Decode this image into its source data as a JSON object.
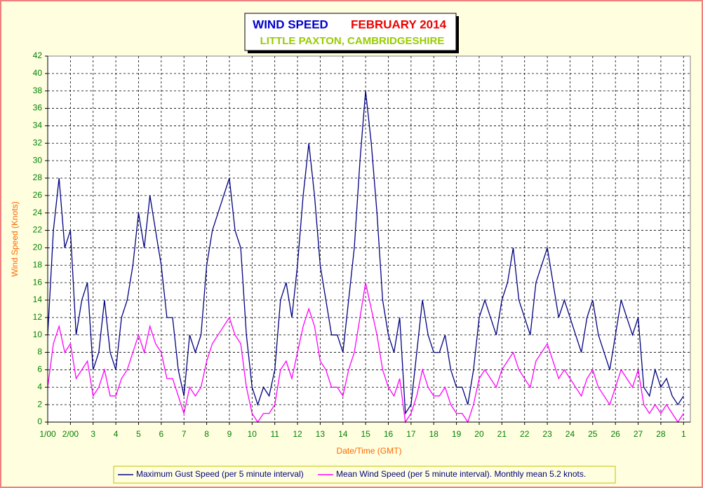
{
  "chart_data": {
    "type": "line",
    "title": "WIND SPEED",
    "title_color": "#0000cc",
    "period": "FEBRUARY 2014",
    "period_color": "#ee0000",
    "subtitle": "LITTLE PAXTON, CAMBRIDGESHIRE",
    "subtitle_color": "#99cc00",
    "x_label": "Date/Time (GMT)",
    "y_label": "Wind Speed (Knots)",
    "axis_label_color": "#ff6600",
    "grid": true,
    "xlim": [
      0,
      28.3
    ],
    "xticks": [
      {
        "value": 0,
        "label": "1/00"
      },
      {
        "value": 1,
        "label": "2/00"
      },
      {
        "value": 2,
        "label": "3"
      },
      {
        "value": 3,
        "label": "4"
      },
      {
        "value": 4,
        "label": "5"
      },
      {
        "value": 5,
        "label": "6"
      },
      {
        "value": 6,
        "label": "7"
      },
      {
        "value": 7,
        "label": "8"
      },
      {
        "value": 8,
        "label": "9"
      },
      {
        "value": 9,
        "label": "10"
      },
      {
        "value": 10,
        "label": "11"
      },
      {
        "value": 11,
        "label": "12"
      },
      {
        "value": 12,
        "label": "13"
      },
      {
        "value": 13,
        "label": "14"
      },
      {
        "value": 14,
        "label": "15"
      },
      {
        "value": 15,
        "label": "16"
      },
      {
        "value": 16,
        "label": "17"
      },
      {
        "value": 17,
        "label": "18"
      },
      {
        "value": 18,
        "label": "19"
      },
      {
        "value": 19,
        "label": "20"
      },
      {
        "value": 20,
        "label": "21"
      },
      {
        "value": 21,
        "label": "22"
      },
      {
        "value": 22,
        "label": "23"
      },
      {
        "value": 23,
        "label": "24"
      },
      {
        "value": 24,
        "label": "25"
      },
      {
        "value": 25,
        "label": "26"
      },
      {
        "value": 26,
        "label": "27"
      },
      {
        "value": 27,
        "label": "28"
      },
      {
        "value": 28,
        "label": "1"
      }
    ],
    "ylim": [
      0,
      42
    ],
    "yticks": [
      0,
      2,
      4,
      6,
      8,
      10,
      12,
      14,
      16,
      18,
      20,
      22,
      24,
      26,
      28,
      30,
      32,
      34,
      36,
      38,
      40,
      42
    ],
    "x": [
      0,
      0.25,
      0.5,
      0.75,
      1,
      1.25,
      1.5,
      1.75,
      2,
      2.25,
      2.5,
      2.75,
      3,
      3.25,
      3.5,
      3.75,
      4,
      4.25,
      4.5,
      4.75,
      5,
      5.25,
      5.5,
      5.75,
      6,
      6.25,
      6.5,
      6.75,
      7,
      7.25,
      7.5,
      7.75,
      8,
      8.25,
      8.5,
      8.75,
      9,
      9.25,
      9.5,
      9.75,
      10,
      10.25,
      10.5,
      10.75,
      11,
      11.25,
      11.5,
      11.75,
      12,
      12.25,
      12.5,
      12.75,
      13,
      13.25,
      13.5,
      13.75,
      14,
      14.25,
      14.5,
      14.75,
      15,
      15.25,
      15.5,
      15.75,
      16,
      16.25,
      16.5,
      16.75,
      17,
      17.25,
      17.5,
      17.75,
      18,
      18.25,
      18.5,
      18.75,
      19,
      19.25,
      19.5,
      19.75,
      20,
      20.25,
      20.5,
      20.75,
      21,
      21.25,
      21.5,
      21.75,
      22,
      22.25,
      22.5,
      22.75,
      23,
      23.25,
      23.5,
      23.75,
      24,
      24.25,
      24.5,
      24.75,
      25,
      25.25,
      25.5,
      25.75,
      26,
      26.25,
      26.5,
      26.75,
      27,
      27.25,
      27.5,
      27.75,
      28
    ],
    "series": [
      {
        "name": "Maximum Gust Speed (per 5 minute interval)",
        "color": "#000080",
        "values": [
          10,
          22,
          28,
          20,
          22,
          10,
          14,
          16,
          6,
          8,
          14,
          8,
          6,
          12,
          14,
          18,
          24,
          20,
          26,
          22,
          18,
          12,
          12,
          6,
          3,
          10,
          8,
          10,
          18,
          22,
          24,
          26,
          28,
          22,
          20,
          10,
          4,
          2,
          4,
          3,
          6,
          14,
          16,
          12,
          18,
          26,
          32,
          26,
          18,
          14,
          10,
          10,
          8,
          14,
          20,
          30,
          38,
          32,
          24,
          14,
          10,
          8,
          12,
          1,
          2,
          8,
          14,
          10,
          8,
          8,
          10,
          6,
          4,
          4,
          2,
          6,
          12,
          14,
          12,
          10,
          14,
          16,
          20,
          14,
          12,
          10,
          16,
          18,
          20,
          16,
          12,
          14,
          12,
          10,
          8,
          12,
          14,
          10,
          8,
          6,
          10,
          14,
          12,
          10,
          12,
          4,
          3,
          6,
          4,
          5,
          3,
          2,
          3
        ]
      },
      {
        "name": "Mean Wind Speed (per 5 minute interval). Monthly mean 5.2 knots.",
        "color": "#ff00ff",
        "values": [
          4,
          9,
          11,
          8,
          9,
          5,
          6,
          7,
          3,
          4,
          6,
          3,
          3,
          5,
          6,
          8,
          10,
          8,
          11,
          9,
          8,
          5,
          5,
          3,
          1,
          4,
          3,
          4,
          7,
          9,
          10,
          11,
          12,
          10,
          9,
          4,
          1,
          0,
          1,
          1,
          2,
          6,
          7,
          5,
          8,
          11,
          13,
          11,
          7,
          6,
          4,
          4,
          3,
          6,
          8,
          12,
          16,
          13,
          10,
          6,
          4,
          3,
          5,
          0,
          1,
          3,
          6,
          4,
          3,
          3,
          4,
          2,
          1,
          1,
          0,
          2,
          5,
          6,
          5,
          4,
          6,
          7,
          8,
          6,
          5,
          4,
          7,
          8,
          9,
          7,
          5,
          6,
          5,
          4,
          3,
          5,
          6,
          4,
          3,
          2,
          4,
          6,
          5,
          4,
          6,
          2,
          1,
          2,
          1,
          2,
          1,
          0,
          1
        ]
      }
    ]
  }
}
